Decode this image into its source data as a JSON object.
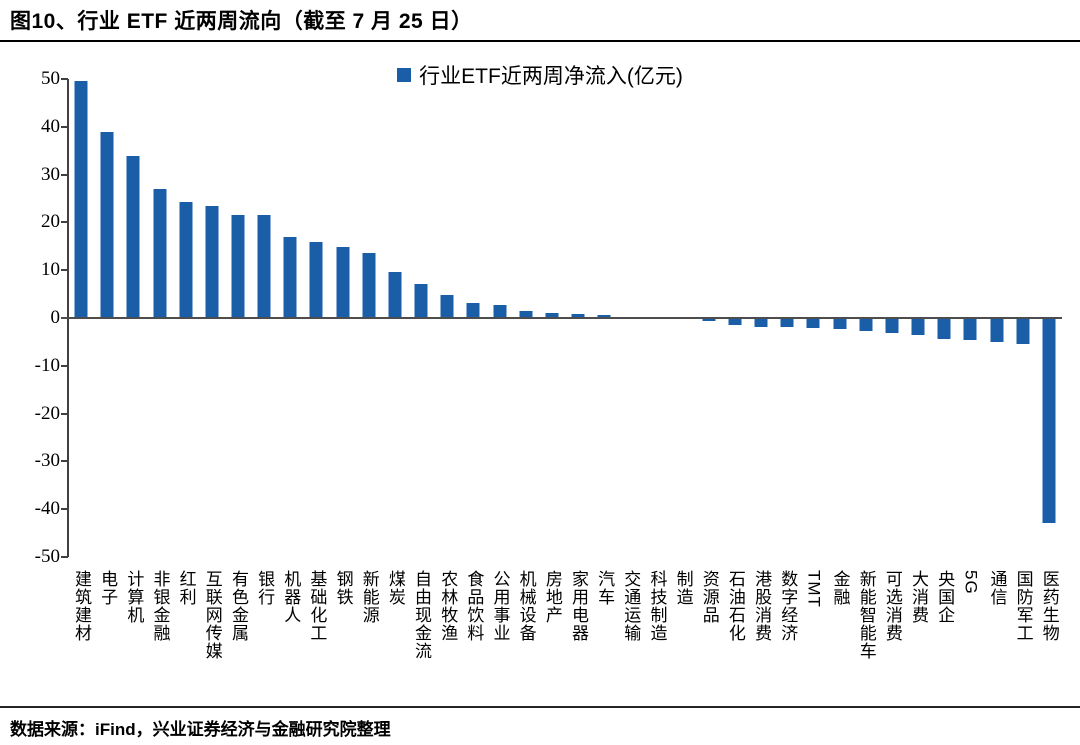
{
  "header": {
    "title": "图10、行业 ETF 近两周流向（截至 7 月 25 日）"
  },
  "legend": {
    "label": "行业ETF近两周净流入(亿元)"
  },
  "footer": {
    "source": "数据来源：iFind，兴业证券经济与金融研究院整理"
  },
  "colors": {
    "bar": "#1B5EA8",
    "axis": "#404040",
    "zero_line": "#4D4D4D"
  },
  "chart_data": {
    "type": "bar",
    "title": "行业ETF近两周净流入(亿元)",
    "ylabel": "",
    "xlabel": "",
    "ylim": [
      -50,
      50
    ],
    "ytick_step": 10,
    "grid": false,
    "legend_position": "top-center",
    "categories": [
      "建筑建材",
      "电子",
      "计算机",
      "非银金融",
      "红利",
      "互联网传媒",
      "有色金属",
      "银行",
      "机器人",
      "基础化工",
      "钢铁",
      "新能源",
      "煤炭",
      "自由现金流",
      "农林牧渔",
      "食品饮料",
      "公用事业",
      "机械设备",
      "房地产",
      "家用电器",
      "汽车",
      "交通运输",
      "科技制造",
      "制造",
      "资源品",
      "石油石化",
      "港股消费",
      "数字经济",
      "TMT",
      "金融",
      "新能智能车",
      "可选消费",
      "大消费",
      "央国企",
      "5G",
      "通信",
      "国防军工",
      "医药生物"
    ],
    "values": [
      49.5,
      39.0,
      33.8,
      27.0,
      24.2,
      23.4,
      21.5,
      21.5,
      17.0,
      16.0,
      14.8,
      13.6,
      9.6,
      7.1,
      4.8,
      3.1,
      2.8,
      1.4,
      1.1,
      0.8,
      0.6,
      0.2,
      0.1,
      -0.1,
      -0.6,
      -1.5,
      -1.8,
      -1.9,
      -2.1,
      -2.4,
      -2.7,
      -3.2,
      -3.6,
      -4.4,
      -4.6,
      -5.1,
      -5.5,
      -42.8
    ]
  }
}
